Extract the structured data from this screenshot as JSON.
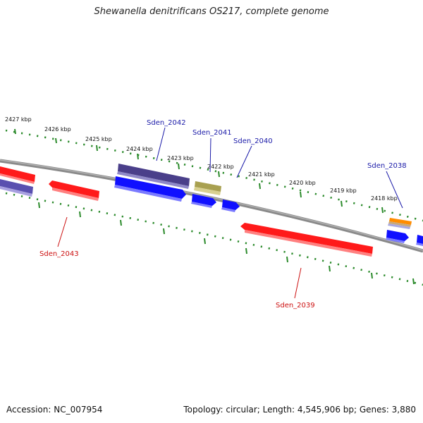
{
  "header": {
    "title": "Shewanella denitrificans OS217, complete genome"
  },
  "footer": {
    "accession": "Accession: NC_007954",
    "summary": "Topology: circular; Length: 4,545,906 bp; Genes: 3,880"
  },
  "colors": {
    "backbone": "#808080",
    "tick_dots": "#2a8a2a",
    "strand_minus": "#ff0000",
    "strand_plus": "#1010ff",
    "gene_label_plus": "#1a1aa8",
    "gene_label_minus": "#cc1010",
    "feature_purple": "#4a3f8a",
    "feature_olive": "#a8a050",
    "feature_orange": "#ff8c00"
  },
  "scale": {
    "ticks": [
      {
        "label": "2427 kbp",
        "kbp": 2427
      },
      {
        "label": "2426 kbp",
        "kbp": 2426
      },
      {
        "label": "2425 kbp",
        "kbp": 2425
      },
      {
        "label": "2424 kbp",
        "kbp": 2424
      },
      {
        "label": "2423 kbp",
        "kbp": 2423
      },
      {
        "label": "2422 kbp",
        "kbp": 2422
      },
      {
        "label": "2421 kbp",
        "kbp": 2421
      },
      {
        "label": "2420 kbp",
        "kbp": 2420
      },
      {
        "label": "2419 kbp",
        "kbp": 2419
      },
      {
        "label": "2418 kbp",
        "kbp": 2418
      }
    ]
  },
  "gene_labels": {
    "sden_2042": "Sden_2042",
    "sden_2041": "Sden_2041",
    "sden_2040": "Sden_2040",
    "sden_2038": "Sden_2038",
    "sden_2043": "Sden_2043",
    "sden_2039": "Sden_2039"
  }
}
